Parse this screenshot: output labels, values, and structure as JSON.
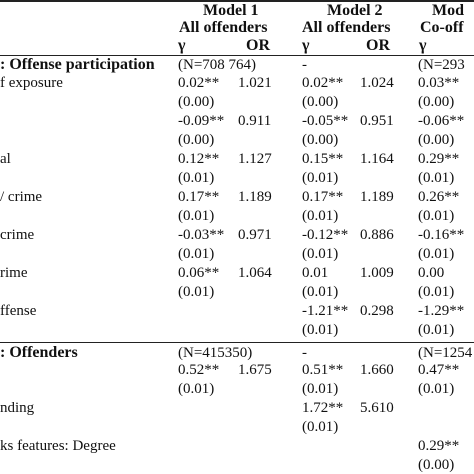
{
  "header": {
    "models": [
      {
        "line1": "Model 1",
        "line2": "All offenders"
      },
      {
        "line1": "Model 2",
        "line2": "All offenders"
      },
      {
        "line1": "Mod",
        "line2": "Co-off"
      }
    ],
    "gamma": "γ",
    "or": "OR"
  },
  "sections": [
    {
      "title": ": Offense participation",
      "n": [
        "(N=708 764)",
        "-",
        "(N=293"
      ]
    },
    {
      "title": ": Offenders",
      "n": [
        "(N=415350)",
        "-",
        "(N=1254"
      ]
    }
  ],
  "rows": [
    {
      "label": "f exposure",
      "g1": "0.02**",
      "or1": "1.021",
      "g2": "0.02**",
      "or2": "1.024",
      "g3": "0.03**"
    },
    {
      "label": "",
      "g1": "(0.00)",
      "or1": "",
      "g2": "(0.00)",
      "or2": "",
      "g3": "(0.00)"
    },
    {
      "label": "",
      "g1": "-0.09**",
      "or1": "0.911",
      "g2": "-0.05**",
      "or2": "0.951",
      "g3": "-0.06**"
    },
    {
      "label": "",
      "g1": "(0.00)",
      "or1": "",
      "g2": "(0.00)",
      "or2": "",
      "g3": "(0.00)"
    },
    {
      "label": "al",
      "g1": "0.12**",
      "or1": "1.127",
      "g2": "0.15**",
      "or2": "1.164",
      "g3": "0.29**"
    },
    {
      "label": "",
      "g1": "(0.01)",
      "or1": "",
      "g2": "(0.01)",
      "or2": "",
      "g3": "(0.01)"
    },
    {
      "label": "/ crime",
      "g1": "0.17**",
      "or1": "1.189",
      "g2": "0.17**",
      "or2": "1.189",
      "g3": "0.26**"
    },
    {
      "label": "",
      "g1": "(0.01)",
      "or1": "",
      "g2": "(0.01)",
      "or2": "",
      "g3": "(0.01)"
    },
    {
      "label": "crime",
      "g1": "-0.03**",
      "or1": "0.971",
      "g2": "-0.12**",
      "or2": "0.886",
      "g3": "-0.16**"
    },
    {
      "label": "",
      "g1": "(0.01)",
      "or1": "",
      "g2": "(0.01)",
      "or2": "",
      "g3": "(0.01)"
    },
    {
      "label": "rime",
      "g1": "0.06**",
      "or1": "1.064",
      "g2": "0.01",
      "or2": "1.009",
      "g3": "0.00"
    },
    {
      "label": "",
      "g1": "(0.01)",
      "or1": "",
      "g2": "(0.01)",
      "or2": "",
      "g3": "(0.01)"
    },
    {
      "label": "ffense",
      "g1": "",
      "or1": "",
      "g2": "-1.21**",
      "or2": "0.298",
      "g3": "-1.29**"
    },
    {
      "label": "",
      "g1": "",
      "or1": "",
      "g2": "(0.01)",
      "or2": "",
      "g3": "(0.01)"
    },
    {
      "label": "",
      "g1": "0.52**",
      "or1": "1.675",
      "g2": "0.51**",
      "or2": "1.660",
      "g3": "0.47**"
    },
    {
      "label": "",
      "g1": "(0.01)",
      "or1": "",
      "g2": "(0.01)",
      "or2": "",
      "g3": "(0.01)"
    },
    {
      "label": "nding",
      "g1": "",
      "or1": "",
      "g2": "1.72**",
      "or2": "5.610",
      "g3": ""
    },
    {
      "label": "",
      "g1": "",
      "or1": "",
      "g2": "(0.01)",
      "or2": "",
      "g3": ""
    },
    {
      "label": "ks features: Degree",
      "g1": "",
      "or1": "",
      "g2": "",
      "or2": "",
      "g3": "0.29**"
    },
    {
      "label": "",
      "g1": "",
      "or1": "",
      "g2": "",
      "or2": "",
      "g3": "(0.00)"
    }
  ]
}
